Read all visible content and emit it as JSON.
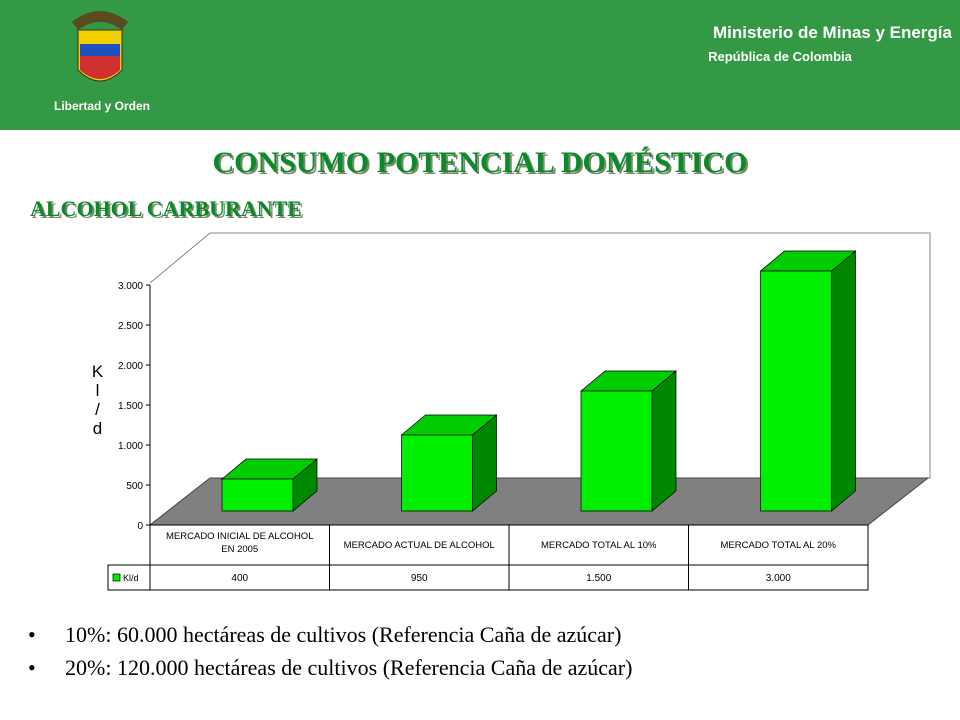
{
  "header": {
    "motto": "Libertad y Orden",
    "ministry": "Ministerio de Minas y Energía",
    "country": "República de Colombia"
  },
  "chart_data": {
    "type": "bar",
    "title": "CONSUMO POTENCIAL DOMÉSTICO",
    "subtitle": "ALCOHOL CARBURANTE",
    "y_label": "Kl/d",
    "categories": [
      "MERCADO INICIAL DE ALCOHOL EN 2005",
      "MERCADO ACTUAL DE ALCOHOL",
      "MERCADO TOTAL AL 10%",
      "MERCADO TOTAL AL 20%"
    ],
    "series": [
      {
        "name": "Kl/d",
        "color": "#00ee00",
        "values": [
          400,
          950,
          1500,
          3000
        ],
        "value_labels": [
          "400",
          "950",
          "1.500",
          "3.000"
        ]
      }
    ],
    "ylim": [
      0,
      3000
    ],
    "yticks": [
      0,
      500,
      {
        "value": 1000,
        "label": "1.000"
      },
      {
        "value": 1500,
        "label": "1.500"
      },
      {
        "value": 2000,
        "label": "2.000"
      },
      {
        "value": 2500,
        "label": "2.500"
      },
      {
        "value": 3000,
        "label": "3.000"
      }
    ],
    "grid": false
  },
  "notes": [
    "10%: 60.000 hectáreas de cultivos (Referencia Caña de azúcar)",
    "20%: 120.000 hectáreas de cultivos (Referencia Caña de azúcar)"
  ]
}
